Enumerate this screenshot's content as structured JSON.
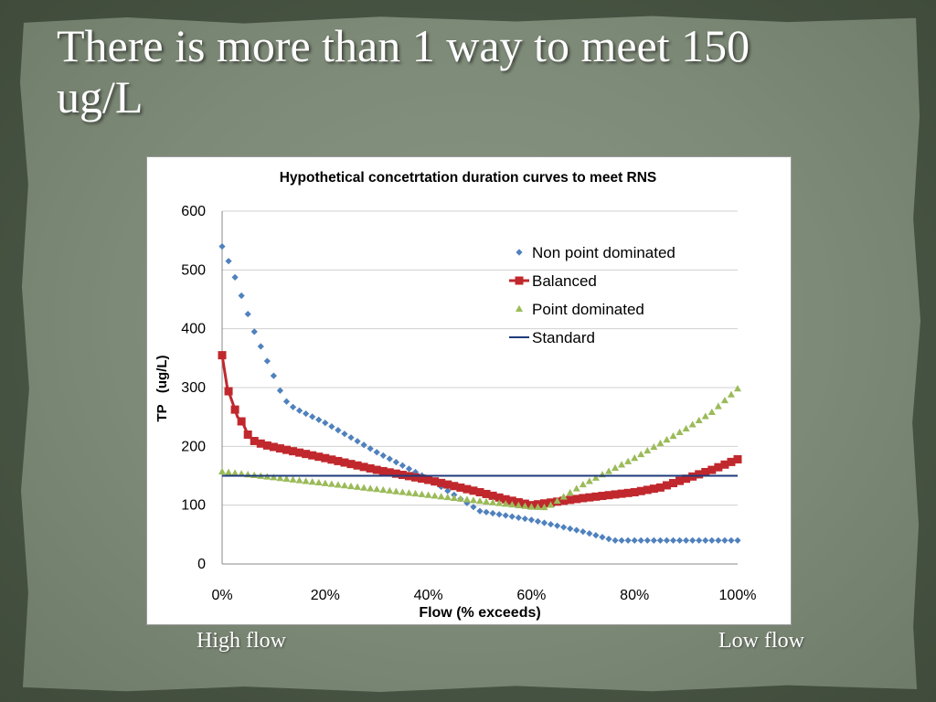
{
  "slide": {
    "title": "There is more than 1 way to meet 150 ug/L",
    "caption_left": "High flow",
    "caption_right": "Low flow"
  },
  "chart_data": {
    "type": "line",
    "title": "Hypothetical concetrtation duration curves to meet RNS",
    "xlabel": "Flow (% exceeds)",
    "ylabel": "TP   (ug/L)",
    "xlim": [
      0,
      100
    ],
    "ylim": [
      0,
      600
    ],
    "x_ticks": [
      0,
      20,
      40,
      60,
      80,
      100
    ],
    "x_tick_labels": [
      "0%",
      "20%",
      "40%",
      "60%",
      "80%",
      "100%"
    ],
    "y_ticks": [
      0,
      100,
      200,
      300,
      400,
      500,
      600
    ],
    "y_tick_labels": [
      "0",
      "100",
      "200",
      "300",
      "400",
      "500",
      "600"
    ],
    "grid": true,
    "legend_position": "top-right",
    "series": [
      {
        "name": "Non point dominated",
        "color": "#4f81bd",
        "marker": "diamond",
        "points": [
          [
            0,
            540
          ],
          [
            2,
            500
          ],
          [
            6,
            400
          ],
          [
            10,
            320
          ],
          [
            12,
            280
          ],
          [
            14,
            265
          ],
          [
            20,
            240
          ],
          [
            30,
            190
          ],
          [
            40,
            145
          ],
          [
            50,
            90
          ],
          [
            60,
            75
          ],
          [
            70,
            55
          ],
          [
            76,
            40
          ],
          [
            80,
            40
          ],
          [
            90,
            40
          ],
          [
            100,
            40
          ]
        ]
      },
      {
        "name": "Balanced",
        "color": "#c0282d",
        "marker": "square",
        "points": [
          [
            0,
            355
          ],
          [
            1,
            300
          ],
          [
            2,
            275
          ],
          [
            3,
            250
          ],
          [
            4,
            240
          ],
          [
            5,
            220
          ],
          [
            6,
            210
          ],
          [
            8,
            203
          ],
          [
            12,
            195
          ],
          [
            20,
            180
          ],
          [
            30,
            160
          ],
          [
            40,
            143
          ],
          [
            50,
            122
          ],
          [
            55,
            110
          ],
          [
            60,
            100
          ],
          [
            65,
            106
          ],
          [
            70,
            112
          ],
          [
            80,
            122
          ],
          [
            85,
            130
          ],
          [
            90,
            145
          ],
          [
            95,
            160
          ],
          [
            100,
            178
          ]
        ]
      },
      {
        "name": "Point dominated",
        "color": "#9bbb59",
        "marker": "triangle",
        "points": [
          [
            0,
            157
          ],
          [
            10,
            147
          ],
          [
            20,
            137
          ],
          [
            30,
            127
          ],
          [
            40,
            117
          ],
          [
            50,
            107
          ],
          [
            60,
            97
          ],
          [
            63,
            96
          ],
          [
            70,
            135
          ],
          [
            80,
            180
          ],
          [
            90,
            230
          ],
          [
            95,
            258
          ],
          [
            100,
            298
          ]
        ]
      },
      {
        "name": "Standard",
        "color": "#1f3a7a",
        "marker": "none",
        "points": [
          [
            0,
            150
          ],
          [
            100,
            150
          ]
        ]
      }
    ]
  }
}
